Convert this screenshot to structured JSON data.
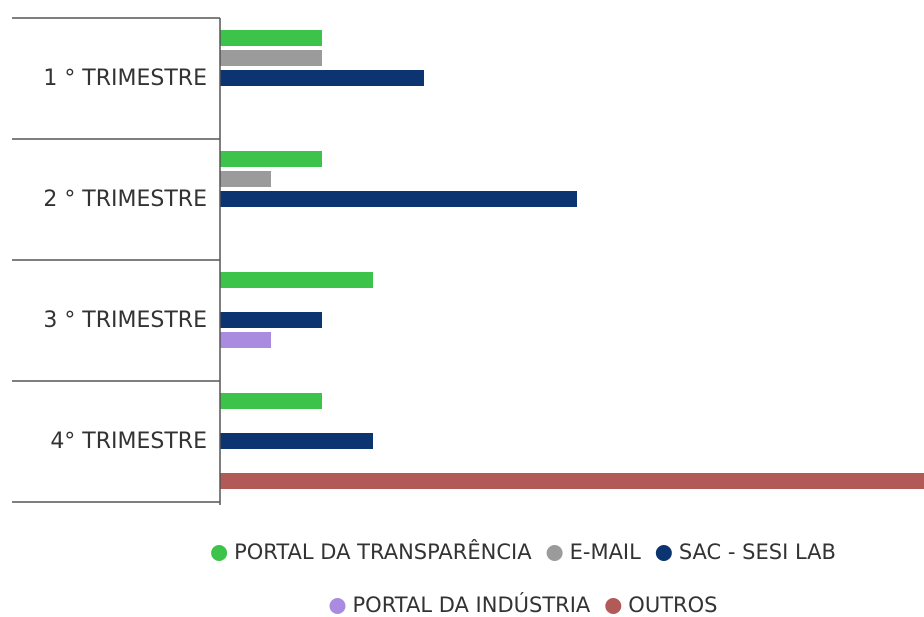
{
  "chart_data": {
    "type": "bar",
    "orientation": "horizontal",
    "categories": [
      "1 ° TRIMESTRE",
      "2 ° TRIMESTRE",
      "3 ° TRIMESTRE",
      "4° TRIMESTRE"
    ],
    "series": [
      {
        "name": "PORTAL DA TRANSPARÊNCIA",
        "color": "#3cc34a",
        "values": [
          2,
          2,
          3,
          2
        ]
      },
      {
        "name": "E-MAIL",
        "color": "#9b9b9b",
        "values": [
          2,
          1,
          null,
          null
        ]
      },
      {
        "name": "SAC - SESI LAB",
        "color": "#0b3470",
        "values": [
          4,
          7,
          2,
          3
        ]
      },
      {
        "name": "PORTAL DA INDÚSTRIA",
        "color": "#a98ce0",
        "values": [
          null,
          null,
          1,
          null
        ]
      },
      {
        "name": "OUTROS",
        "color": "#b25a58",
        "values": [
          null,
          null,
          null,
          14
        ]
      }
    ],
    "xlim": [
      0,
      14
    ],
    "legend": "bottom"
  }
}
